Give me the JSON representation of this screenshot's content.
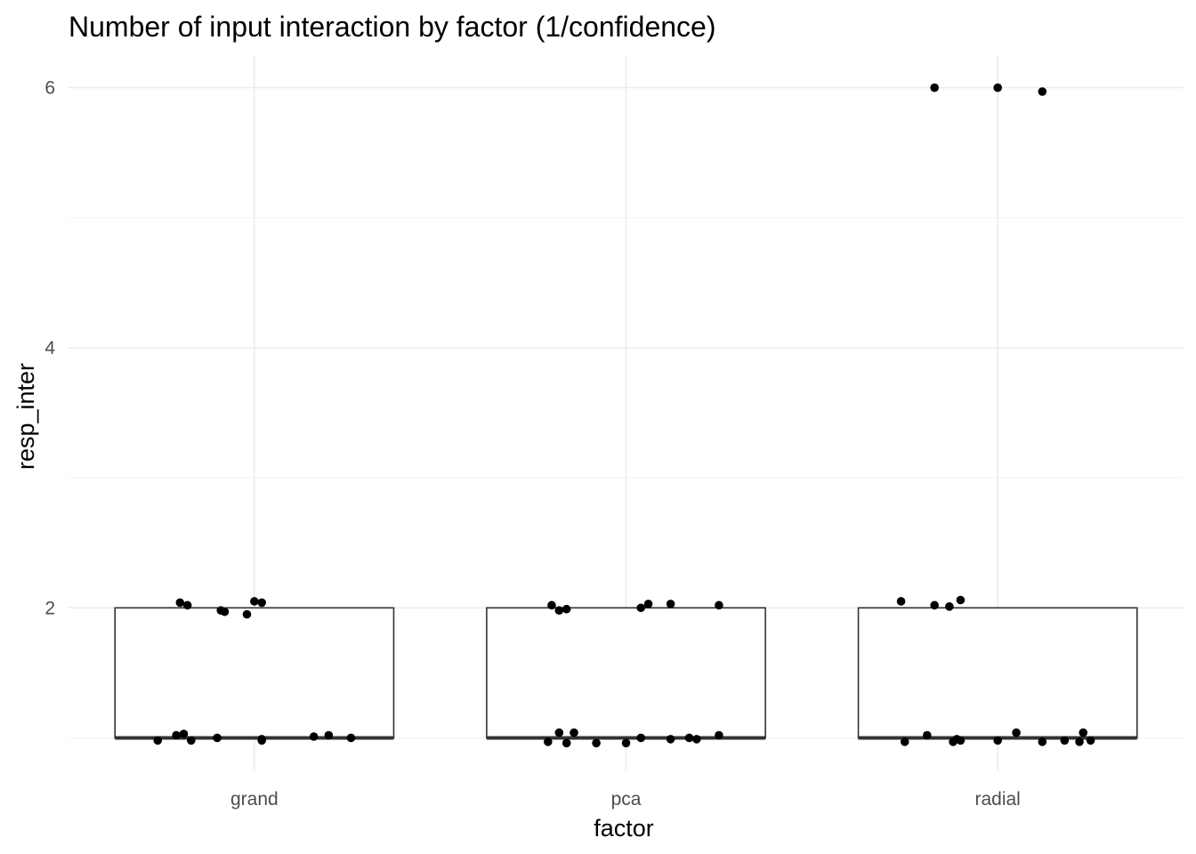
{
  "chart_data": {
    "type": "boxplot",
    "title": "Number of input interaction by factor (1/confidence)",
    "xlabel": "factor",
    "ylabel": "resp_inter",
    "categories": [
      "grand",
      "pca",
      "radial"
    ],
    "ylim": [
      0.75,
      6.25
    ],
    "y_ticks": [
      2,
      4,
      6
    ],
    "grid": true,
    "legend": "none",
    "colors": {
      "points": "#000000",
      "box_fill": "#ffffff",
      "box_stroke": "#333333",
      "grid": "#ebebeb"
    },
    "boxes": [
      {
        "category": "grand",
        "min": 1,
        "q1": 1,
        "median": 1,
        "q3": 2,
        "max": 2
      },
      {
        "category": "pca",
        "min": 1,
        "q1": 1,
        "median": 1,
        "q3": 2,
        "max": 2
      },
      {
        "category": "radial",
        "min": 1,
        "q1": 1,
        "median": 1,
        "q3": 2,
        "max": 2
      }
    ],
    "points": [
      {
        "category": "grand",
        "jitter_x": -0.2,
        "y": 2.04
      },
      {
        "category": "grand",
        "jitter_x": -0.18,
        "y": 2.02
      },
      {
        "category": "grand",
        "jitter_x": -0.09,
        "y": 1.98
      },
      {
        "category": "grand",
        "jitter_x": -0.08,
        "y": 1.97
      },
      {
        "category": "grand",
        "jitter_x": -0.02,
        "y": 1.95
      },
      {
        "category": "grand",
        "jitter_x": 0.0,
        "y": 2.05
      },
      {
        "category": "grand",
        "jitter_x": 0.02,
        "y": 2.04
      },
      {
        "category": "grand",
        "jitter_x": -0.26,
        "y": 0.98
      },
      {
        "category": "grand",
        "jitter_x": -0.21,
        "y": 1.02
      },
      {
        "category": "grand",
        "jitter_x": -0.19,
        "y": 1.03
      },
      {
        "category": "grand",
        "jitter_x": -0.17,
        "y": 0.98
      },
      {
        "category": "grand",
        "jitter_x": -0.1,
        "y": 1.0
      },
      {
        "category": "grand",
        "jitter_x": 0.02,
        "y": 0.98
      },
      {
        "category": "grand",
        "jitter_x": 0.02,
        "y": 0.99
      },
      {
        "category": "grand",
        "jitter_x": 0.16,
        "y": 1.01
      },
      {
        "category": "grand",
        "jitter_x": 0.2,
        "y": 1.02
      },
      {
        "category": "grand",
        "jitter_x": 0.26,
        "y": 1.0
      },
      {
        "category": "pca",
        "jitter_x": -0.2,
        "y": 2.02
      },
      {
        "category": "pca",
        "jitter_x": -0.18,
        "y": 1.98
      },
      {
        "category": "pca",
        "jitter_x": -0.16,
        "y": 1.99
      },
      {
        "category": "pca",
        "jitter_x": 0.04,
        "y": 2.0
      },
      {
        "category": "pca",
        "jitter_x": 0.06,
        "y": 2.03
      },
      {
        "category": "pca",
        "jitter_x": 0.12,
        "y": 2.03
      },
      {
        "category": "pca",
        "jitter_x": 0.25,
        "y": 2.02
      },
      {
        "category": "pca",
        "jitter_x": -0.21,
        "y": 0.97
      },
      {
        "category": "pca",
        "jitter_x": -0.18,
        "y": 1.04
      },
      {
        "category": "pca",
        "jitter_x": -0.16,
        "y": 0.96
      },
      {
        "category": "pca",
        "jitter_x": -0.14,
        "y": 1.04
      },
      {
        "category": "pca",
        "jitter_x": -0.08,
        "y": 0.96
      },
      {
        "category": "pca",
        "jitter_x": 0.0,
        "y": 0.96
      },
      {
        "category": "pca",
        "jitter_x": 0.04,
        "y": 1.0
      },
      {
        "category": "pca",
        "jitter_x": 0.12,
        "y": 0.99
      },
      {
        "category": "pca",
        "jitter_x": 0.17,
        "y": 1.0
      },
      {
        "category": "pca",
        "jitter_x": 0.19,
        "y": 0.99
      },
      {
        "category": "pca",
        "jitter_x": 0.25,
        "y": 1.02
      },
      {
        "category": "radial",
        "jitter_x": -0.17,
        "y": 6.0
      },
      {
        "category": "radial",
        "jitter_x": 0.0,
        "y": 6.0
      },
      {
        "category": "radial",
        "jitter_x": 0.12,
        "y": 5.97
      },
      {
        "category": "radial",
        "jitter_x": -0.26,
        "y": 2.05
      },
      {
        "category": "radial",
        "jitter_x": -0.17,
        "y": 2.02
      },
      {
        "category": "radial",
        "jitter_x": -0.13,
        "y": 2.01
      },
      {
        "category": "radial",
        "jitter_x": -0.1,
        "y": 2.06
      },
      {
        "category": "radial",
        "jitter_x": -0.25,
        "y": 0.97
      },
      {
        "category": "radial",
        "jitter_x": -0.19,
        "y": 1.02
      },
      {
        "category": "radial",
        "jitter_x": -0.12,
        "y": 0.97
      },
      {
        "category": "radial",
        "jitter_x": -0.11,
        "y": 0.99
      },
      {
        "category": "radial",
        "jitter_x": -0.1,
        "y": 0.98
      },
      {
        "category": "radial",
        "jitter_x": 0.0,
        "y": 0.98
      },
      {
        "category": "radial",
        "jitter_x": 0.05,
        "y": 1.04
      },
      {
        "category": "radial",
        "jitter_x": 0.12,
        "y": 0.97
      },
      {
        "category": "radial",
        "jitter_x": 0.18,
        "y": 0.98
      },
      {
        "category": "radial",
        "jitter_x": 0.22,
        "y": 0.97
      },
      {
        "category": "radial",
        "jitter_x": 0.23,
        "y": 1.04
      },
      {
        "category": "radial",
        "jitter_x": 0.25,
        "y": 0.98
      }
    ]
  }
}
